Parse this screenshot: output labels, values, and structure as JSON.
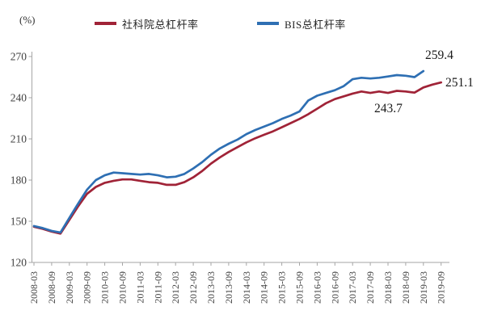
{
  "header": {
    "unit_label": "(%)"
  },
  "legend": [
    {
      "label": "社科院总杠杆率",
      "color": "#A02337"
    },
    {
      "label": "BIS总杠杆率",
      "color": "#2E6FB3"
    }
  ],
  "axis_color": "#A6A6A6",
  "tick_label_color": "#404040",
  "chart_data": {
    "type": "line",
    "title": "",
    "xlabel": "",
    "ylabel": "(%)",
    "ylim": [
      120,
      270
    ],
    "y_ticks": [
      120,
      150,
      180,
      210,
      240,
      270
    ],
    "grid": false,
    "legend_position": "top",
    "x_tick_labels": [
      "2008-03",
      "2008-09",
      "2009-03",
      "2009-09",
      "2010-03",
      "2010-09",
      "2011-03",
      "2011-09",
      "2012-03",
      "2012-09",
      "2013-03",
      "2013-09",
      "2014-03",
      "2014-09",
      "2015-03",
      "2015-09",
      "2016-03",
      "2016-09",
      "2017-03",
      "2017-09",
      "2018-03",
      "2018-09",
      "2019-03",
      "2019-09"
    ],
    "categories": [
      "2008-03",
      "2008-06",
      "2008-09",
      "2008-12",
      "2009-03",
      "2009-06",
      "2009-09",
      "2009-12",
      "2010-03",
      "2010-06",
      "2010-09",
      "2010-12",
      "2011-03",
      "2011-06",
      "2011-09",
      "2011-12",
      "2012-03",
      "2012-06",
      "2012-09",
      "2012-12",
      "2013-03",
      "2013-06",
      "2013-09",
      "2013-12",
      "2014-03",
      "2014-06",
      "2014-09",
      "2014-12",
      "2015-03",
      "2015-06",
      "2015-09",
      "2015-12",
      "2016-03",
      "2016-06",
      "2016-09",
      "2016-12",
      "2017-03",
      "2017-06",
      "2017-09",
      "2017-12",
      "2018-03",
      "2018-06",
      "2018-09",
      "2018-12",
      "2019-03",
      "2019-06",
      "2019-09"
    ],
    "series": [
      {
        "name": "社科院总杠杆率",
        "color": "#A02337",
        "values": [
          146,
          144.5,
          142.5,
          141,
          151,
          161,
          170,
          175,
          178,
          179.5,
          180.5,
          180.5,
          179.5,
          178.5,
          178,
          176.5,
          176.5,
          178.5,
          182,
          186.5,
          192,
          196.5,
          200.5,
          204,
          207.5,
          210.5,
          213,
          215.5,
          218.5,
          221.5,
          224.5,
          228,
          232,
          236,
          239,
          241,
          243,
          244.5,
          243.5,
          244.5,
          243.5,
          245,
          244.5,
          243.7,
          247.5,
          249.5,
          251.1
        ]
      },
      {
        "name": "BIS总杠杆率",
        "color": "#2E6FB3",
        "values": [
          146.5,
          145,
          143,
          141.8,
          152.5,
          163,
          173,
          180,
          183.5,
          185.5,
          185,
          184.5,
          184,
          184.5,
          183.5,
          182,
          182.5,
          184.5,
          188.5,
          193,
          198.5,
          203,
          206.5,
          209.5,
          213.5,
          216.5,
          219,
          221.5,
          224.5,
          227,
          230,
          238,
          241.5,
          243.5,
          245.5,
          248.5,
          253.5,
          254.5,
          254,
          254.5,
          255.5,
          256.5,
          256,
          255,
          259.4
        ]
      }
    ],
    "annotations": [
      {
        "text": "259.4",
        "series": "BIS总杠杆率",
        "x": "2019-03",
        "value": 259.4
      },
      {
        "text": "251.1",
        "series": "社科院总杠杆率",
        "x": "2019-09",
        "value": 251.1
      },
      {
        "text": "243.7",
        "series": "社科院总杠杆率",
        "x": "2018-12",
        "value": 243.7
      }
    ]
  }
}
